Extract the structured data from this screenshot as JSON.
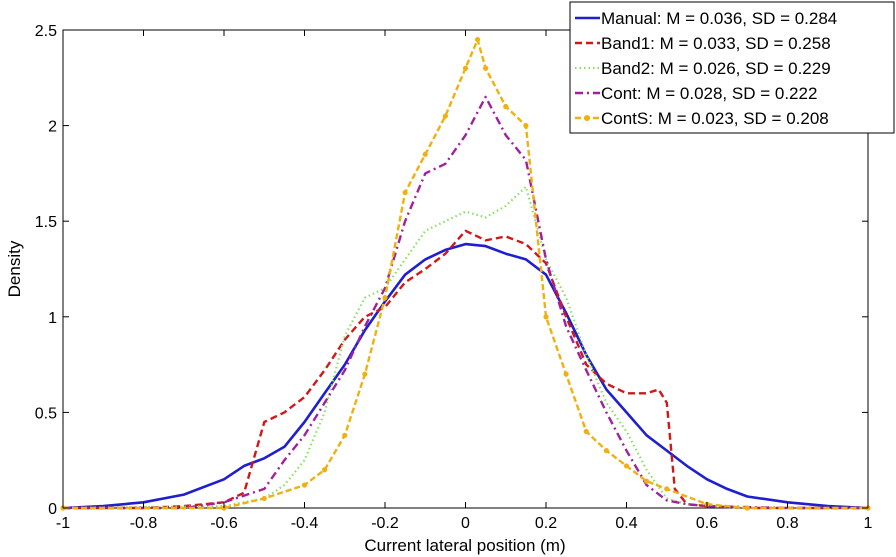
{
  "chart_data": {
    "type": "line",
    "title": "",
    "xlabel": "Current lateral position (m)",
    "ylabel": "Density",
    "xlim": [
      -1,
      1
    ],
    "ylim": [
      0,
      2.5
    ],
    "xticks": [
      "-1",
      "-0.8",
      "-0.6",
      "-0.4",
      "-0.2",
      "0",
      "0.2",
      "0.4",
      "0.6",
      "0.8",
      "1"
    ],
    "yticks": [
      "0",
      "0.5",
      "1",
      "1.5",
      "2",
      "2.5"
    ],
    "grid": false,
    "legend_position": "top-right",
    "series": [
      {
        "name": "Manual: M = 0.036, SD = 0.284",
        "color": "#1f1fd0",
        "style": "solid",
        "x": [
          -1.0,
          -0.9,
          -0.8,
          -0.7,
          -0.6,
          -0.55,
          -0.5,
          -0.45,
          -0.4,
          -0.35,
          -0.3,
          -0.25,
          -0.2,
          -0.15,
          -0.1,
          -0.05,
          0.0,
          0.05,
          0.1,
          0.15,
          0.2,
          0.25,
          0.3,
          0.35,
          0.4,
          0.45,
          0.5,
          0.55,
          0.6,
          0.65,
          0.7,
          0.8,
          0.9,
          1.0
        ],
        "y": [
          0.0,
          0.01,
          0.03,
          0.07,
          0.15,
          0.22,
          0.26,
          0.32,
          0.45,
          0.6,
          0.75,
          0.93,
          1.08,
          1.22,
          1.3,
          1.35,
          1.38,
          1.37,
          1.33,
          1.3,
          1.22,
          1.02,
          0.8,
          0.62,
          0.5,
          0.38,
          0.3,
          0.22,
          0.15,
          0.1,
          0.06,
          0.03,
          0.01,
          0.0
        ]
      },
      {
        "name": "Band1: M = 0.033, SD = 0.258",
        "color": "#d01818",
        "style": "dashed",
        "x": [
          -1.0,
          -0.8,
          -0.7,
          -0.6,
          -0.55,
          -0.5,
          -0.45,
          -0.4,
          -0.35,
          -0.3,
          -0.25,
          -0.2,
          -0.15,
          -0.1,
          -0.05,
          0.0,
          0.05,
          0.1,
          0.15,
          0.2,
          0.25,
          0.3,
          0.35,
          0.4,
          0.45,
          0.48,
          0.5,
          0.52,
          0.55,
          0.6,
          0.7,
          0.8,
          1.0
        ],
        "y": [
          0.0,
          0.0,
          0.01,
          0.03,
          0.08,
          0.45,
          0.5,
          0.58,
          0.72,
          0.88,
          1.0,
          1.05,
          1.18,
          1.25,
          1.33,
          1.45,
          1.4,
          1.42,
          1.38,
          1.28,
          1.0,
          0.75,
          0.65,
          0.6,
          0.6,
          0.62,
          0.55,
          0.1,
          0.02,
          0.01,
          0.0,
          0.0,
          0.0
        ]
      },
      {
        "name": "Band2: M = 0.026, SD = 0.229",
        "color": "#88e060",
        "style": "dotted",
        "x": [
          -1.0,
          -0.6,
          -0.5,
          -0.45,
          -0.4,
          -0.35,
          -0.3,
          -0.25,
          -0.2,
          -0.15,
          -0.1,
          -0.05,
          0.0,
          0.05,
          0.1,
          0.15,
          0.2,
          0.25,
          0.3,
          0.35,
          0.4,
          0.45,
          0.5,
          0.55,
          0.6,
          0.7,
          1.0
        ],
        "y": [
          0.0,
          0.01,
          0.05,
          0.12,
          0.25,
          0.5,
          0.9,
          1.1,
          1.15,
          1.3,
          1.45,
          1.5,
          1.55,
          1.52,
          1.58,
          1.68,
          1.3,
          1.1,
          0.8,
          0.55,
          0.4,
          0.2,
          0.05,
          0.02,
          0.01,
          0.0,
          0.0
        ]
      },
      {
        "name": "Cont: M = 0.028, SD = 0.222",
        "color": "#a020a0",
        "style": "dashdot",
        "x": [
          -1.0,
          -0.7,
          -0.6,
          -0.5,
          -0.45,
          -0.4,
          -0.35,
          -0.3,
          -0.25,
          -0.2,
          -0.15,
          -0.1,
          -0.05,
          0.0,
          0.05,
          0.1,
          0.15,
          0.2,
          0.25,
          0.3,
          0.35,
          0.4,
          0.45,
          0.5,
          0.55,
          0.6,
          0.8,
          1.0
        ],
        "y": [
          0.0,
          0.0,
          0.03,
          0.1,
          0.25,
          0.38,
          0.55,
          0.72,
          0.95,
          1.15,
          1.5,
          1.75,
          1.8,
          1.95,
          2.15,
          1.95,
          1.82,
          1.3,
          0.95,
          0.72,
          0.5,
          0.3,
          0.12,
          0.04,
          0.02,
          0.01,
          0.0,
          0.0
        ]
      },
      {
        "name": "ContS: M = 0.023, SD = 0.208",
        "color": "#f0b010",
        "style": "dashed-marker",
        "x": [
          -1.0,
          -0.6,
          -0.5,
          -0.4,
          -0.35,
          -0.3,
          -0.25,
          -0.2,
          -0.15,
          -0.1,
          -0.05,
          0.0,
          0.03,
          0.05,
          0.1,
          0.15,
          0.2,
          0.25,
          0.3,
          0.35,
          0.4,
          0.45,
          0.5,
          0.6,
          0.7,
          1.0
        ],
        "y": [
          0.0,
          0.0,
          0.05,
          0.12,
          0.2,
          0.38,
          0.7,
          1.1,
          1.65,
          1.85,
          2.05,
          2.3,
          2.45,
          2.3,
          2.1,
          2.0,
          1.0,
          0.7,
          0.4,
          0.3,
          0.22,
          0.14,
          0.1,
          0.02,
          0.0,
          0.0
        ]
      }
    ]
  }
}
